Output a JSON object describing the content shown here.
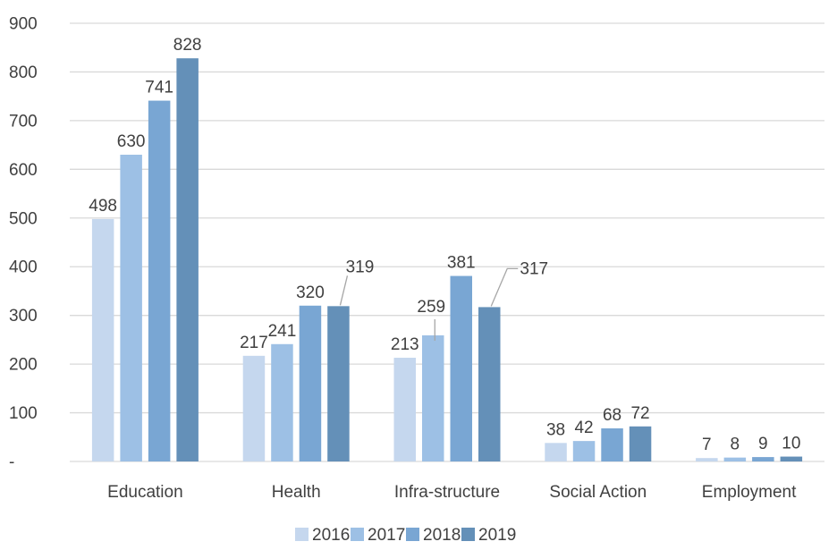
{
  "chart_data": {
    "type": "bar",
    "title": "",
    "xlabel": "",
    "ylabel": "",
    "categories": [
      "Education",
      "Health",
      "Infra-structure",
      "Social Action",
      "Employment"
    ],
    "series": [
      {
        "name": "2016",
        "values": [
          498,
          217,
          213,
          38,
          7
        ]
      },
      {
        "name": "2017",
        "values": [
          630,
          241,
          259,
          42,
          8
        ]
      },
      {
        "name": "2018",
        "values": [
          741,
          320,
          381,
          68,
          9
        ]
      },
      {
        "name": "2019",
        "values": [
          828,
          319,
          317,
          72,
          10
        ]
      }
    ],
    "ylim": [
      0,
      900
    ],
    "yticks": [
      0,
      100,
      200,
      300,
      400,
      500,
      600,
      700,
      800,
      900
    ],
    "ytick_labels": [
      "-",
      "100",
      "200",
      "300",
      "400",
      "500",
      "600",
      "700",
      "800",
      "900"
    ],
    "grid": true,
    "legend": "bottom-center",
    "colors": [
      "#c5d7ee",
      "#9dc0e5",
      "#79a6d3",
      "#6490b8"
    ],
    "gridline_color": "#d9d9d9",
    "text_color": "#404040"
  }
}
